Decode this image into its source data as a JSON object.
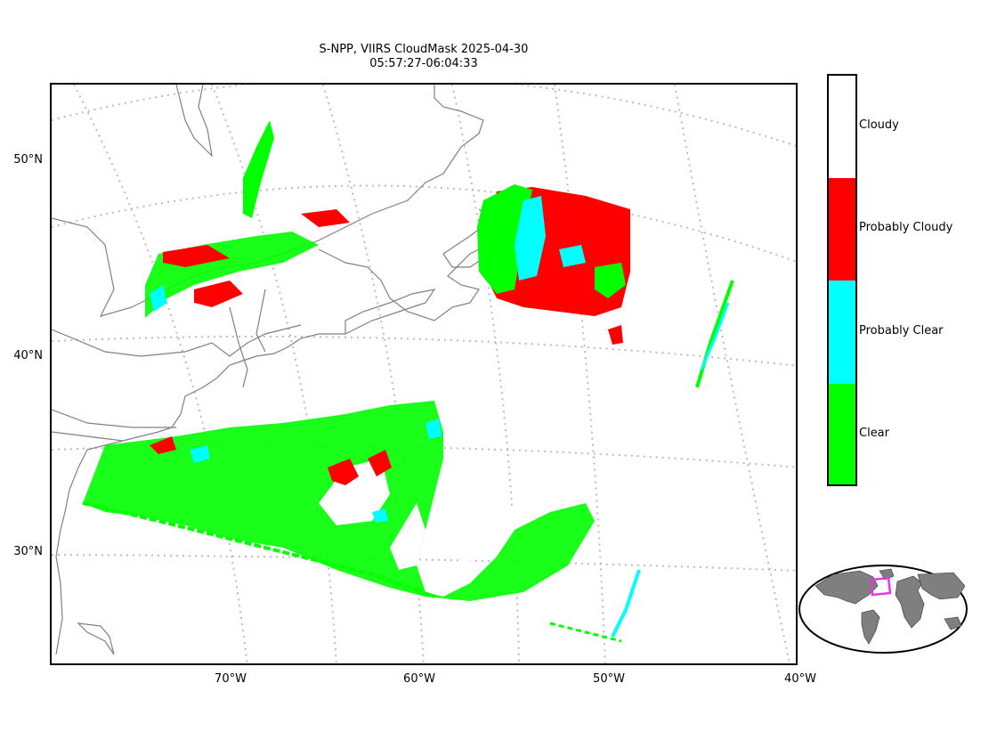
{
  "title": {
    "line1": "S-NPP, VIIRS CloudMask 2025-04-30",
    "line2": "05:57:27-06:04:33"
  },
  "axes": {
    "lat_ticks": [
      "50°N",
      "40°N",
      "30°N"
    ],
    "lon_ticks": [
      "70°W",
      "60°W",
      "50°W",
      "40°W"
    ],
    "gridlines": "dotted",
    "grid_color": "#bbbbbb",
    "coastline_color": "#808080"
  },
  "colorbar": {
    "categories": [
      {
        "label": "Cloudy",
        "color": "#ffffff"
      },
      {
        "label": "Probably Cloudy",
        "color": "#ff0000"
      },
      {
        "label": "Probably Clear",
        "color": "#00ffff"
      },
      {
        "label": "Clear",
        "color": "#00ff00"
      }
    ]
  },
  "inset": {
    "name": "global-locator-map",
    "land_color": "#7f7f7f",
    "box_color": "#e535e5"
  }
}
